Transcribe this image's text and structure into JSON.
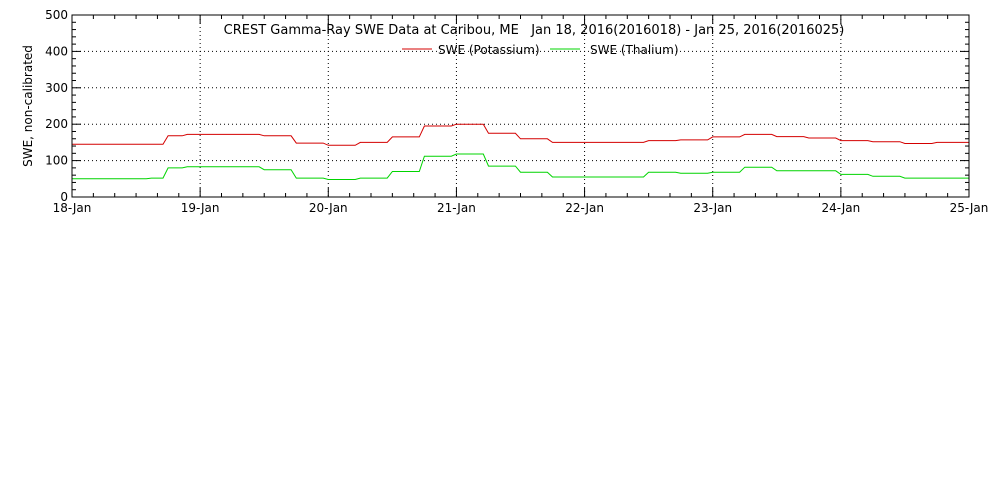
{
  "chart_data": {
    "type": "line",
    "title": "CREST Gamma-Ray SWE Data at Caribou, ME   Jan 18, 2016(2016018) - Jan 25, 2016(2016025)",
    "ylabel": "SWE, non-calibrated",
    "xlabel": "",
    "ylim": [
      0,
      500
    ],
    "xlim": [
      0,
      7
    ],
    "yticks": [
      0,
      100,
      200,
      300,
      400,
      500
    ],
    "xticks": [
      0,
      1,
      2,
      3,
      4,
      5,
      6,
      7
    ],
    "x_tick_labels": [
      "18-Jan",
      "19-Jan",
      "20-Jan",
      "21-Jan",
      "22-Jan",
      "23-Jan",
      "24-Jan",
      "25-Jan"
    ],
    "grid": true,
    "legend_position": "top-center",
    "series": [
      {
        "name": "SWE (Potassium)",
        "color": "#d40000",
        "x": [
          0,
          0.62,
          0.75,
          0.9,
          1.2,
          1.5,
          1.75,
          2.0,
          2.25,
          2.5,
          2.75,
          3.0,
          3.25,
          3.5,
          3.75,
          4.0,
          4.25,
          4.5,
          4.75,
          5.0,
          5.25,
          5.5,
          5.75,
          6.0,
          6.25,
          6.5,
          6.75,
          7.0
        ],
        "values": [
          145,
          145,
          168,
          172,
          172,
          168,
          148,
          142,
          150,
          165,
          195,
          200,
          175,
          160,
          150,
          150,
          150,
          155,
          157,
          165,
          172,
          166,
          162,
          155,
          152,
          147,
          150,
          150
        ]
      },
      {
        "name": "SWE (Thalium)",
        "color": "#00d400",
        "x": [
          0,
          0.62,
          0.75,
          0.9,
          1.2,
          1.5,
          1.75,
          2.0,
          2.25,
          2.5,
          2.75,
          3.0,
          3.25,
          3.5,
          3.75,
          4.0,
          4.25,
          4.5,
          4.75,
          5.0,
          5.25,
          5.5,
          5.75,
          6.0,
          6.25,
          6.5,
          6.75,
          7.0
        ],
        "values": [
          50,
          52,
          80,
          83,
          83,
          75,
          52,
          48,
          52,
          70,
          112,
          118,
          85,
          68,
          55,
          55,
          55,
          68,
          65,
          68,
          82,
          72,
          72,
          62,
          57,
          52,
          52,
          52
        ]
      }
    ]
  }
}
